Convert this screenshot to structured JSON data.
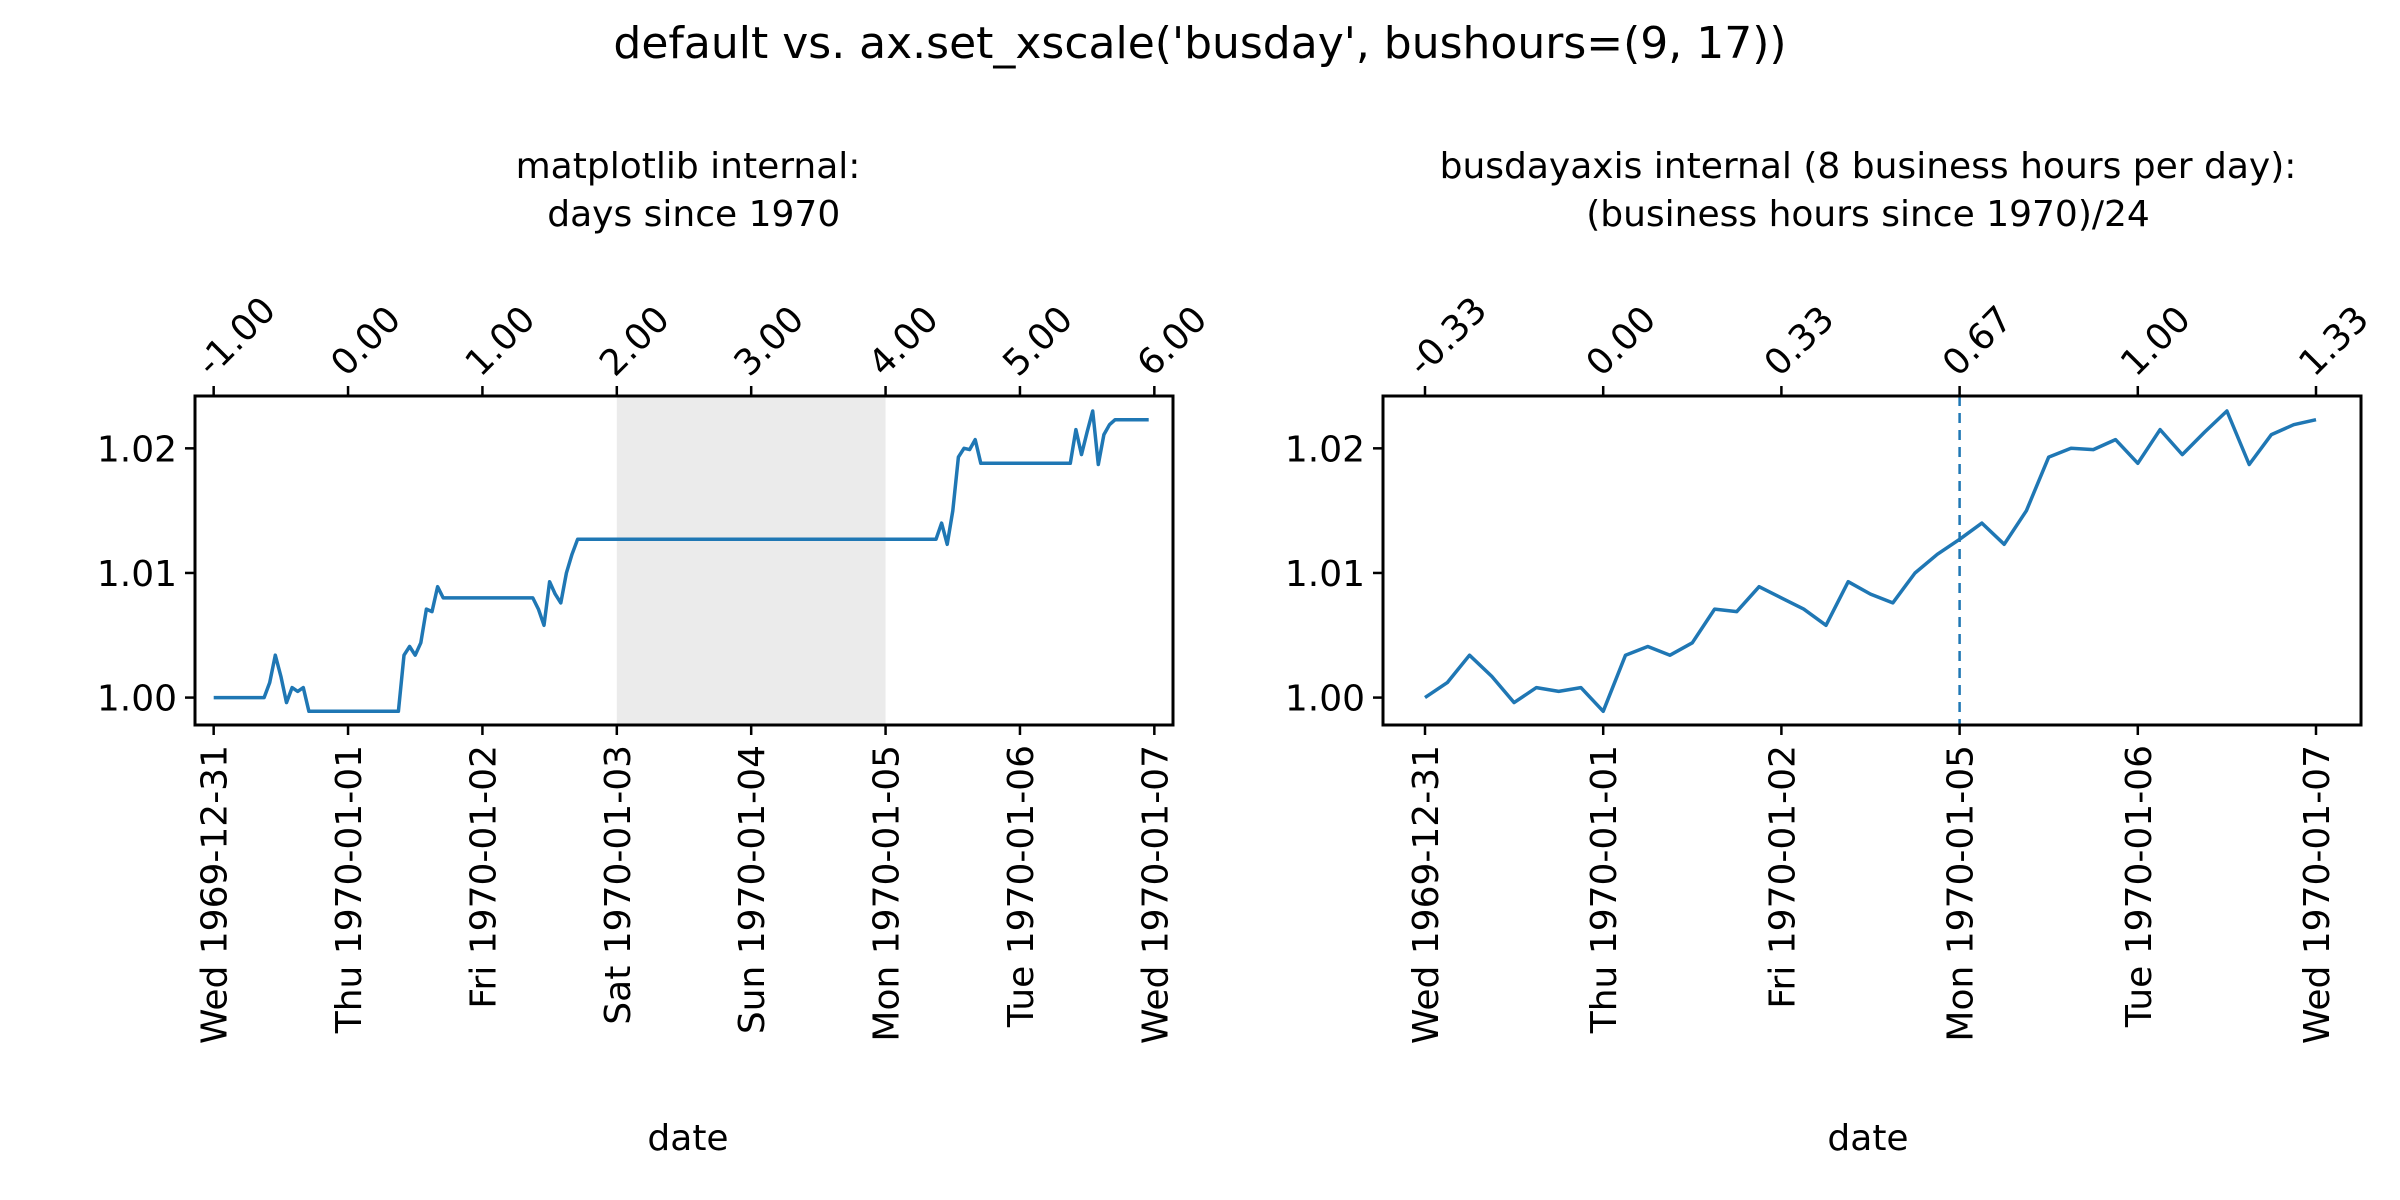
{
  "figure_title": "default vs. ax.set_xscale('busday', bushours=(9, 17))",
  "chart_data": [
    {
      "type": "line",
      "title": "matplotlib internal:\n days since 1970",
      "xlabel": "date",
      "ylabel": "",
      "grid": false,
      "xlim": [
        "1969-12-30 20:40",
        "1970-01-07 03:20"
      ],
      "ylim": [
        0.9978,
        1.0242
      ],
      "yticks": [
        1.0,
        1.01,
        1.02
      ],
      "ytick_labels": [
        "1.00",
        "1.01",
        "1.02"
      ],
      "xticks_bottom": [
        "1969-12-31",
        "1970-01-01",
        "1970-01-02",
        "1970-01-03",
        "1970-01-04",
        "1970-01-05",
        "1970-01-06",
        "1970-01-07"
      ],
      "xtick_labels_bottom": [
        "Wed 1969-12-31",
        "Thu 1970-01-01",
        "Fri 1970-01-02",
        "Sat 1970-01-03",
        "Sun 1970-01-04",
        "Mon 1970-01-05",
        "Tue 1970-01-06",
        "Wed 1970-01-07"
      ],
      "xtick_labels_top": [
        "-1.00",
        "0.00",
        "1.00",
        "2.00",
        "3.00",
        "4.00",
        "5.00",
        "6.00"
      ],
      "shaded_spans": [
        {
          "from": "1970-01-03",
          "to": "1970-01-05",
          "color": "#ebebeb"
        }
      ],
      "series": [
        {
          "color": "#1f77b4",
          "x": [
            "1969-12-31 00:00",
            "1969-12-31 09:00",
            "1969-12-31 10:00",
            "1969-12-31 11:00",
            "1969-12-31 12:00",
            "1969-12-31 13:00",
            "1969-12-31 14:00",
            "1969-12-31 15:00",
            "1969-12-31 16:00",
            "1969-12-31 17:00",
            "1970-01-01 09:00",
            "1970-01-01 10:00",
            "1970-01-01 11:00",
            "1970-01-01 12:00",
            "1970-01-01 13:00",
            "1970-01-01 14:00",
            "1970-01-01 15:00",
            "1970-01-01 16:00",
            "1970-01-01 17:00",
            "1970-01-02 09:00",
            "1970-01-02 10:00",
            "1970-01-02 11:00",
            "1970-01-02 12:00",
            "1970-01-02 13:00",
            "1970-01-02 14:00",
            "1970-01-02 15:00",
            "1970-01-02 16:00",
            "1970-01-02 17:00",
            "1970-01-05 09:00",
            "1970-01-05 10:00",
            "1970-01-05 11:00",
            "1970-01-05 12:00",
            "1970-01-05 13:00",
            "1970-01-05 14:00",
            "1970-01-05 15:00",
            "1970-01-05 16:00",
            "1970-01-05 17:00",
            "1970-01-06 09:00",
            "1970-01-06 10:00",
            "1970-01-06 11:00",
            "1970-01-06 12:00",
            "1970-01-06 13:00",
            "1970-01-06 14:00",
            "1970-01-06 15:00",
            "1970-01-06 16:00",
            "1970-01-06 17:00",
            "1970-01-06 23:00"
          ],
          "y": [
            1.0,
            1.0,
            1.0012,
            1.0034,
            1.0017,
            0.9996,
            1.0008,
            1.0005,
            1.0008,
            0.9989,
            0.9989,
            1.0034,
            1.0041,
            1.0034,
            1.0044,
            1.0071,
            1.0069,
            1.0089,
            1.008,
            1.008,
            1.0071,
            1.0058,
            1.0093,
            1.0083,
            1.0076,
            1.01,
            1.0115,
            1.0127,
            1.0127,
            1.014,
            1.0123,
            1.015,
            1.0193,
            1.02,
            1.0199,
            1.0207,
            1.0188,
            1.0188,
            1.0215,
            1.0195,
            1.0213,
            1.023,
            1.0187,
            1.0211,
            1.0219,
            1.0223,
            1.0223
          ]
        }
      ]
    },
    {
      "type": "line",
      "title": "busdayaxis internal (8 business hours per day):\n(business hours since 1970)/24",
      "xlabel": "date",
      "ylabel": "",
      "grid": false,
      "xscale": "busday",
      "bushours": [
        9,
        17
      ],
      "ylim": [
        0.9978,
        1.0242
      ],
      "yticks": [
        1.0,
        1.01,
        1.02
      ],
      "ytick_labels": [
        "1.00",
        "1.01",
        "1.02"
      ],
      "xtick_labels_bottom": [
        "Wed 1969-12-31",
        "Thu 1970-01-01",
        "Fri 1970-01-02",
        "Mon 1970-01-05",
        "Tue 1970-01-06",
        "Wed 1970-01-07"
      ],
      "xtick_labels_top": [
        "-0.33",
        "0.00",
        "0.33",
        "0.67",
        "1.00",
        "1.33"
      ],
      "vertical_line": {
        "at": "Mon 1970-01-05",
        "style": "dashed",
        "color": "#1f77b4"
      },
      "series": [
        {
          "color": "#1f77b4",
          "x_business_hours_since_start": [
            0,
            1,
            2,
            3,
            4,
            5,
            6,
            7,
            8,
            9,
            10,
            11,
            12,
            13,
            14,
            15,
            16,
            17,
            18,
            19,
            20,
            21,
            22,
            23,
            24,
            25,
            26,
            27,
            28,
            29,
            30,
            31,
            32,
            33,
            34,
            35,
            36,
            37,
            38,
            39,
            40
          ],
          "y": [
            1.0,
            1.0012,
            1.0034,
            1.0017,
            0.9996,
            1.0008,
            1.0005,
            1.0008,
            0.9989,
            1.0034,
            1.0041,
            1.0034,
            1.0044,
            1.0071,
            1.0069,
            1.0089,
            1.008,
            1.0071,
            1.0058,
            1.0093,
            1.0083,
            1.0076,
            1.01,
            1.0115,
            1.0127,
            1.014,
            1.0123,
            1.015,
            1.0193,
            1.02,
            1.0199,
            1.0207,
            1.0188,
            1.0215,
            1.0195,
            1.0213,
            1.023,
            1.0187,
            1.0211,
            1.0219,
            1.0223
          ]
        }
      ]
    }
  ]
}
